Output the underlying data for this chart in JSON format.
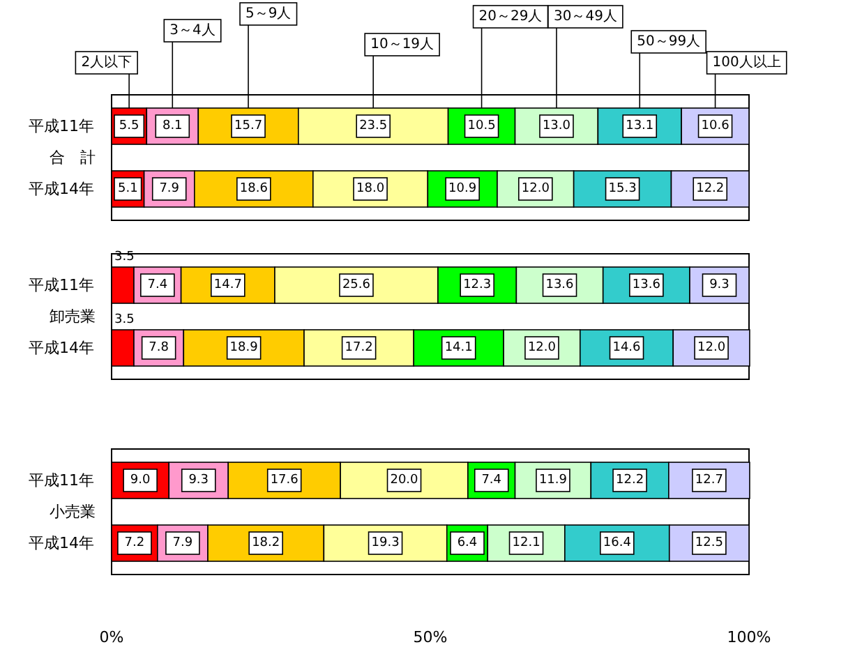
{
  "chart_data": [
    {
      "type": "bar",
      "orientation": "horizontal",
      "stacked": true,
      "ylabel": "合　計",
      "categories": [
        "平成11年",
        "平成14年"
      ],
      "xlim": [
        0,
        100
      ],
      "tick_labels": "y",
      "legend": "top",
      "series": [
        {
          "name": "2人以下",
          "color": "#ff0000",
          "values": [
            5.5,
            5.1
          ],
          "value_labels": [
            "5.5",
            "5.1"
          ]
        },
        {
          "name": "3～4人",
          "color": "#ff99cc",
          "values": [
            8.1,
            7.9
          ],
          "value_labels": [
            "8.1",
            "7.9"
          ]
        },
        {
          "name": "5～9人",
          "color": "#ffcc00",
          "values": [
            15.7,
            18.6
          ],
          "value_labels": [
            "15.7",
            "18.6"
          ]
        },
        {
          "name": "10～19人",
          "color": "#ffff99",
          "values": [
            23.5,
            18.0
          ],
          "value_labels": [
            "23.5",
            "18.0"
          ]
        },
        {
          "name": "20～29人",
          "color": "#00ff00",
          "values": [
            10.5,
            10.9
          ],
          "value_labels": [
            "10.5",
            "10.9"
          ]
        },
        {
          "name": "30～49人",
          "color": "#ccffcc",
          "values": [
            13.0,
            12.0
          ],
          "value_labels": [
            "13.0",
            "12.0"
          ]
        },
        {
          "name": "50～99人",
          "color": "#33cccc",
          "values": [
            13.1,
            15.3
          ],
          "value_labels": [
            "13.1",
            "15.3"
          ]
        },
        {
          "name": "100人以上",
          "color": "#ccccff",
          "values": [
            10.6,
            12.2
          ],
          "value_labels": [
            "10.6",
            "12.2"
          ]
        }
      ]
    },
    {
      "type": "bar",
      "orientation": "horizontal",
      "stacked": true,
      "ylabel": "卸売業",
      "categories": [
        "平成11年",
        "平成14年"
      ],
      "xlim": [
        0,
        100
      ],
      "tick_labels": "y",
      "series": [
        {
          "color": "#ff0000",
          "values": [
            3.5,
            3.5
          ],
          "value_labels": [
            "3.5",
            "3.5"
          ]
        },
        {
          "color": "#ff99cc",
          "values": [
            7.4,
            7.8
          ],
          "value_labels": [
            "7.4",
            "7.8"
          ]
        },
        {
          "color": "#ffcc00",
          "values": [
            14.7,
            18.9
          ],
          "value_labels": [
            "14.7",
            "18.9"
          ]
        },
        {
          "color": "#ffff99",
          "values": [
            25.6,
            17.2
          ],
          "value_labels": [
            "25.6",
            "17.2"
          ]
        },
        {
          "color": "#00ff00",
          "values": [
            12.3,
            14.1
          ],
          "value_labels": [
            "12.3",
            "14.1"
          ]
        },
        {
          "color": "#ccffcc",
          "values": [
            13.6,
            12.0
          ],
          "value_labels": [
            "13.6",
            "12.0"
          ]
        },
        {
          "color": "#33cccc",
          "values": [
            13.6,
            14.6
          ],
          "value_labels": [
            "13.6",
            "14.6"
          ]
        },
        {
          "color": "#ccccff",
          "values": [
            9.3,
            12.0
          ],
          "value_labels": [
            "9.3",
            "12.0"
          ]
        }
      ]
    },
    {
      "type": "bar",
      "orientation": "horizontal",
      "stacked": true,
      "ylabel": "小売業",
      "categories": [
        "平成11年",
        "平成14年"
      ],
      "xlim": [
        0,
        100
      ],
      "xticks": [
        {
          "value": 0,
          "label": "0%"
        },
        {
          "value": 50,
          "label": "50%"
        },
        {
          "value": 100,
          "label": "100%"
        }
      ],
      "series": [
        {
          "color": "#ff0000",
          "values": [
            9.0,
            7.2
          ],
          "value_labels": [
            "9.0",
            "7.2"
          ]
        },
        {
          "color": "#ff99cc",
          "values": [
            9.3,
            7.9
          ],
          "value_labels": [
            "9.3",
            "7.9"
          ]
        },
        {
          "color": "#ffcc00",
          "values": [
            17.6,
            18.2
          ],
          "value_labels": [
            "17.6",
            "18.2"
          ]
        },
        {
          "color": "#ffff99",
          "values": [
            20.0,
            19.3
          ],
          "value_labels": [
            "20.0",
            "19.3"
          ]
        },
        {
          "color": "#00ff00",
          "values": [
            7.4,
            6.4
          ],
          "value_labels": [
            "7.4",
            "6.4"
          ]
        },
        {
          "color": "#ccffcc",
          "values": [
            11.9,
            12.1
          ],
          "value_labels": [
            "11.9",
            "12.1"
          ]
        },
        {
          "color": "#33cccc",
          "values": [
            12.2,
            16.4
          ],
          "value_labels": [
            "12.2",
            "16.4"
          ]
        },
        {
          "color": "#ccccff",
          "values": [
            12.7,
            12.5
          ],
          "value_labels": [
            "12.7",
            "12.5"
          ]
        }
      ]
    }
  ]
}
